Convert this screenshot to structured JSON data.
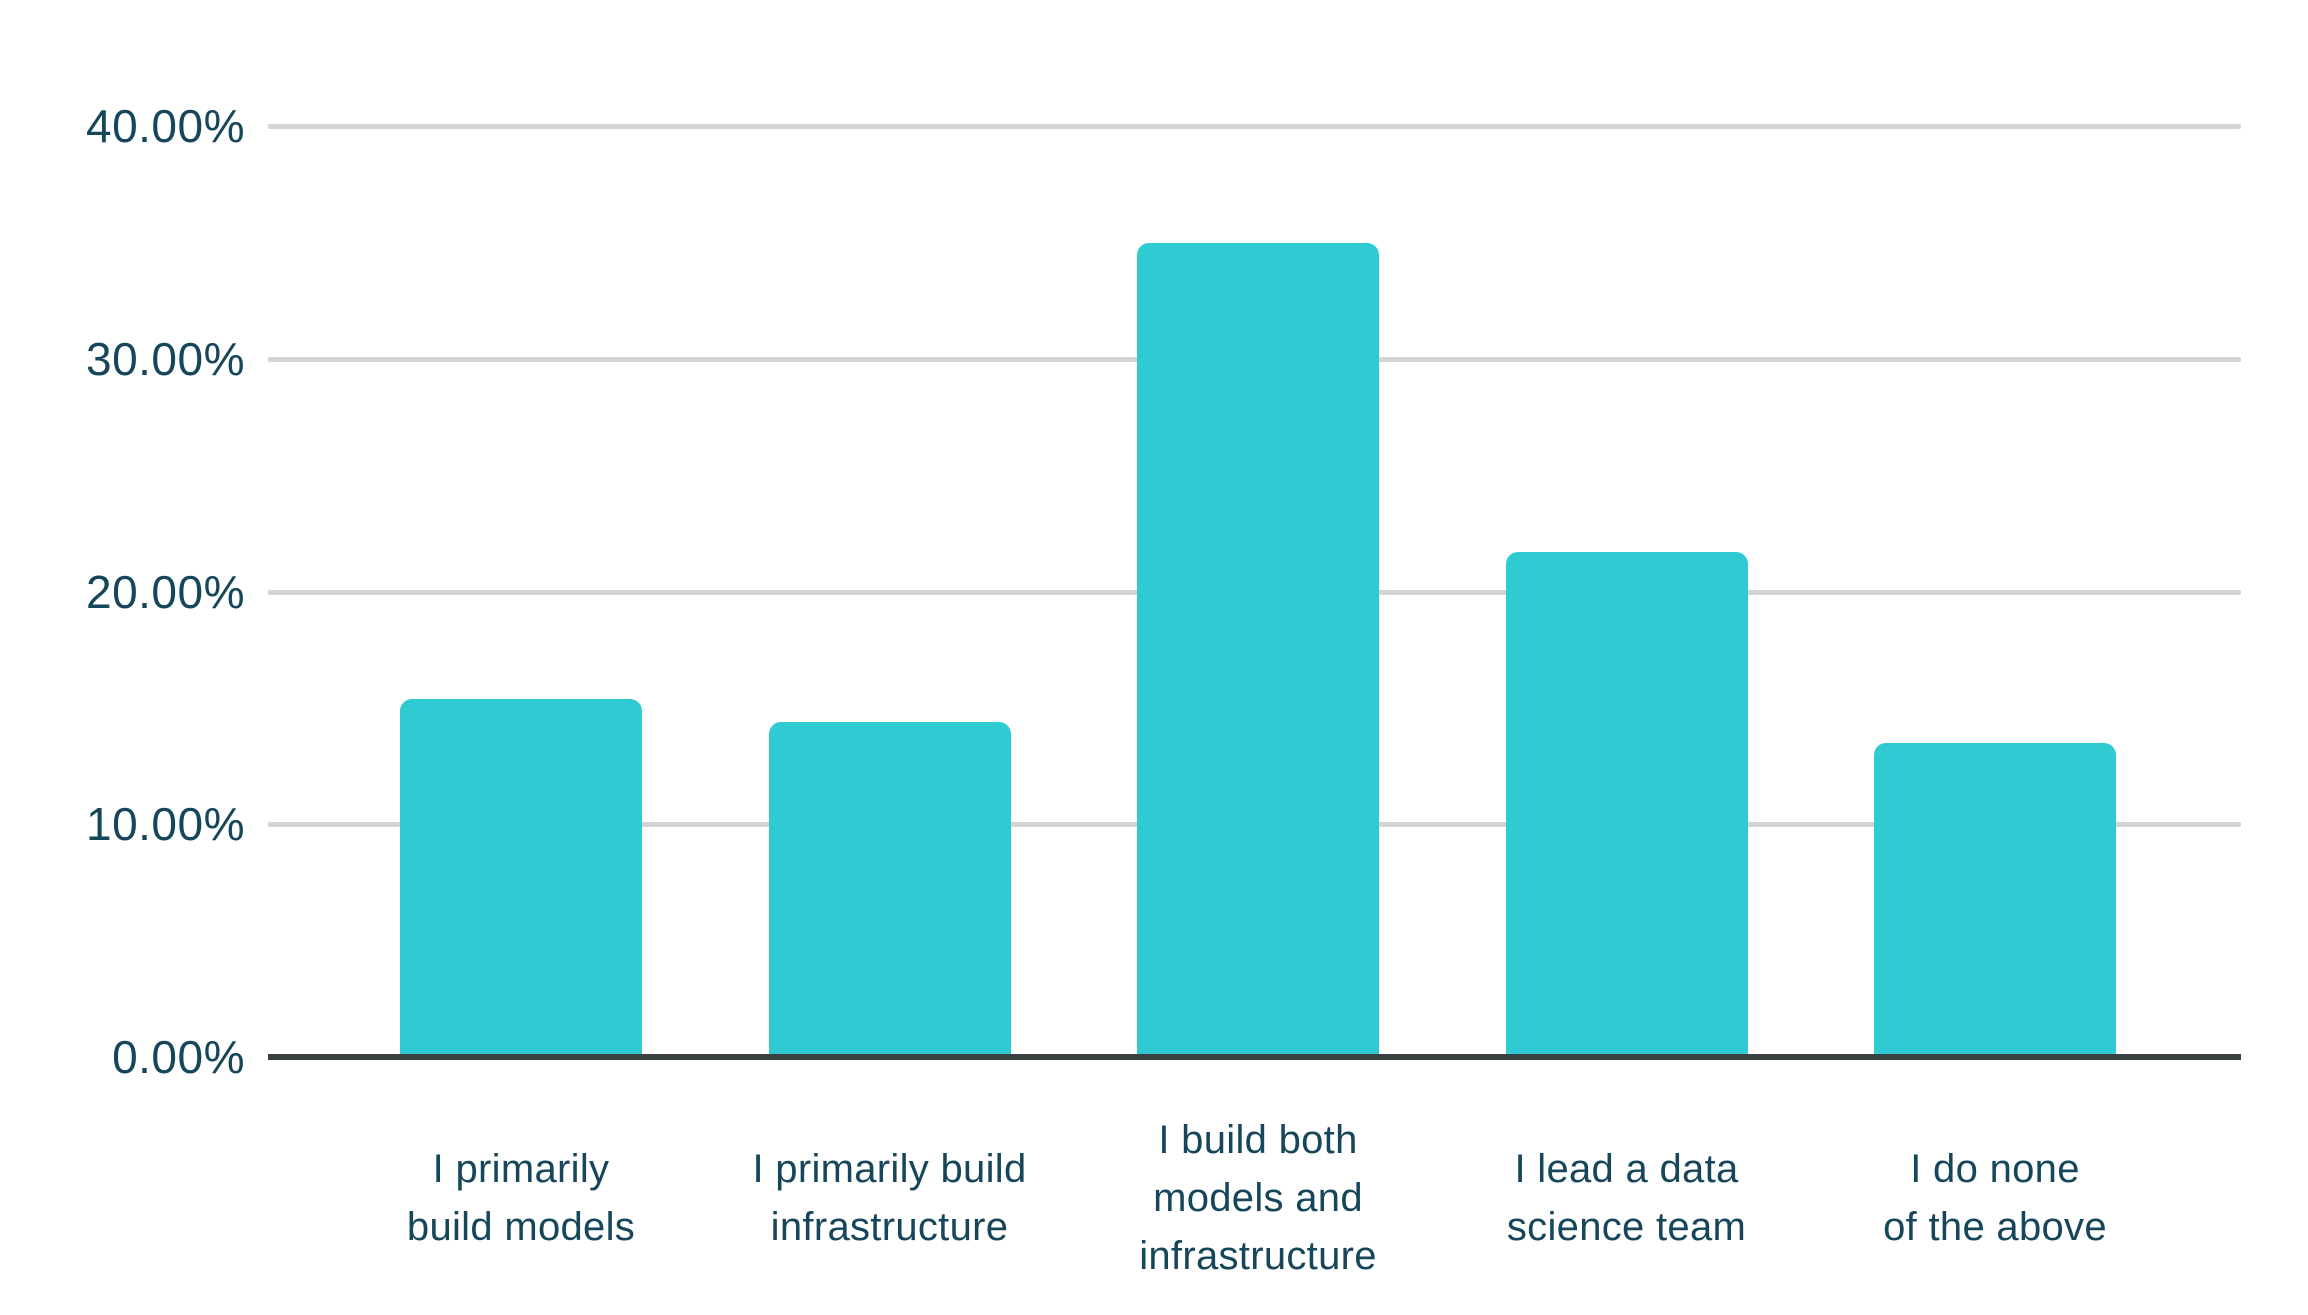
{
  "chart_data": {
    "type": "bar",
    "title": "",
    "xlabel": "",
    "ylabel": "",
    "categories": [
      "I primarily\nbuild models",
      "I primarily build\ninfrastructure",
      "I build both\nmodels and\ninfrastructure",
      "I lead a data\nscience team",
      "I do none\nof the above"
    ],
    "values": [
      15.4,
      14.4,
      35.0,
      21.7,
      13.5
    ],
    "value_unit": "%",
    "ylim": [
      0,
      40
    ],
    "yticks": [
      {
        "label": "40.00%",
        "value": 40
      },
      {
        "label": "30.00%",
        "value": 30
      },
      {
        "label": "20.00%",
        "value": 20
      },
      {
        "label": "10.00%",
        "value": 10
      },
      {
        "label": "0.00%",
        "value": 0
      }
    ],
    "grid": true,
    "legend_position": "none",
    "colors": {
      "bar": "#30CBD2",
      "text": "#16465A",
      "gridline": "#D4D4D4",
      "axis_line": "#3A3F42",
      "background": "#FFFFFF"
    }
  }
}
